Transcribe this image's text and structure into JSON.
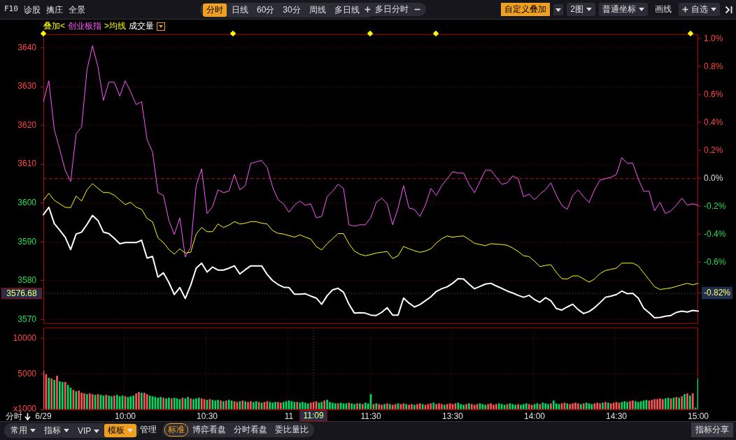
{
  "chart_data": [
    {
      "type": "line",
      "legend_title": "叠加<",
      "annotations": [
        "F10",
        "诊股",
        "擒庄",
        "全景",
        "分时",
        "日线",
        "60分",
        "30分",
        "周线",
        "多日线",
        "多日分时",
        "自定义叠加",
        "2图",
        "普通坐标",
        "画线",
        "自选"
      ],
      "categories": [
        null,
        null,
        null,
        null,
        null,
        null,
        null,
        null,
        null,
        null,
        null,
        null,
        null,
        null,
        null,
        null,
        null,
        null,
        null,
        null,
        null,
        null,
        null,
        null,
        null,
        null,
        null,
        null,
        null,
        null,
        null,
        null,
        null,
        null,
        null,
        null,
        null,
        null,
        null,
        null,
        null,
        null,
        null,
        null,
        null,
        null,
        null,
        null,
        null,
        null,
        null,
        null,
        null,
        null,
        null,
        null,
        null,
        null,
        null,
        null,
        null,
        null,
        null,
        null,
        null,
        null,
        null,
        null,
        null,
        null,
        null,
        null,
        null,
        null,
        null,
        null,
        null,
        null,
        null,
        null,
        null,
        null,
        null,
        null,
        null,
        null,
        null,
        null,
        null,
        null,
        null,
        null,
        null,
        null,
        null,
        null,
        null,
        null,
        null,
        null,
        null,
        null,
        null,
        null,
        null,
        null,
        null,
        null,
        null,
        null,
        null,
        null,
        null,
        null,
        null,
        null,
        null,
        null,
        null,
        null,
        null
      ],
      "ylim": [
        3569,
        3643.5
      ],
      "yticks": [
        3570,
        3580,
        3590,
        3600,
        3610,
        3620,
        3630,
        3640
      ],
      "y2lim": [
        -1.034,
        1.032
      ],
      "y2ticks": [
        {
          "value": -0.82,
          "label": "-0.82%"
        },
        {
          "value": -0.6,
          "label": "-0.6%"
        },
        {
          "value": -0.4,
          "label": "-0.4%"
        },
        {
          "value": -0.2,
          "label": "-0.2%"
        },
        {
          "value": 0,
          "label": "0.0%"
        },
        {
          "value": 0.2,
          "label": "0.2%"
        },
        {
          "value": 0.4,
          "label": "0.4%"
        },
        {
          "value": 0.6,
          "label": "0.6%"
        },
        {
          "value": 0.8,
          "label": "0.8%"
        },
        {
          "value": 1,
          "label": "1.0%"
        }
      ],
      "grid": "y",
      "marker": "none",
      "ref_lines": [
        {
          "axis": "y2",
          "value": 0,
          "line_style": "dashed",
          "color": "#b01818"
        },
        {
          "axis": "y",
          "value": 3576.68,
          "label": "3576.68",
          "line_style": "dotted",
          "color": "#606060"
        }
      ],
      "series": [
        {
          "color": "#ffffff",
          "values": [
            3597.0,
            3598.9,
            3594.7,
            3593.0,
            3591.2,
            3588.0,
            3592.0,
            3592.5,
            3594.5,
            3596.8,
            3595.5,
            3592.5,
            3592.1,
            3590.9,
            3589.5,
            3589.8,
            3589.8,
            3589.8,
            3590.4,
            3585.8,
            3586.2,
            3580.9,
            3582.0,
            3579.5,
            3576.4,
            3578.2,
            3575.4,
            3578.8,
            3583.2,
            3584.5,
            3582.2,
            3583.5,
            3582.7,
            3582.7,
            3583.2,
            3583.8,
            3581.7,
            3582.8,
            3583.8,
            3583.8,
            3583.8,
            3581.6,
            3580.0,
            3579.0,
            3578.3,
            3578.2,
            3576.5,
            3576.5,
            3576.6,
            3576.0,
            3575.5,
            3573.9,
            3576.1,
            3577.6,
            3578.0,
            3577.0,
            3573.9,
            3571.6,
            3571.7,
            3571.6,
            3571.1,
            3571.0,
            3571.8,
            3573.0,
            3571.1,
            3571.1,
            3575.5,
            3574.2,
            3573.2,
            3573.8,
            3574.8,
            3575.8,
            3577.2,
            3577.9,
            3578.4,
            3579.3,
            3580.5,
            3580.4,
            3579.1,
            3577.9,
            3578.5,
            3579.1,
            3579.3,
            3578.6,
            3578.0,
            3577.3,
            3576.8,
            3576.2,
            3575.7,
            3576.2,
            3575.1,
            3574.4,
            3575.6,
            3574.8,
            3572.8,
            3572.4,
            3573.2,
            3573.9,
            3572.5,
            3571.5,
            3572.0,
            3573.0,
            3574.3,
            3575.7,
            3576.0,
            3576.4,
            3577.3,
            3576.6,
            3576.7,
            3575.5,
            3572.9,
            3571.7,
            3570.4,
            3570.5,
            3570.8,
            3571.0,
            3571.8,
            3572.1,
            3571.9,
            3572.3,
            3572.1
          ]
        },
        {
          "name": "创业板指",
          "color": "#ff55ff",
          "axis": "y2",
          "values": [
            0.55,
            0.7,
            0.35,
            0.21,
            0.06,
            -0.02,
            0.32,
            0.37,
            0.78,
            0.95,
            0.8,
            0.56,
            0.69,
            0.69,
            0.59,
            0.7,
            0.62,
            0.53,
            0.55,
            0.28,
            0.19,
            -0.1,
            -0.12,
            -0.3,
            -0.4,
            -0.28,
            -0.56,
            -0.49,
            -0.05,
            0.07,
            -0.25,
            -0.2,
            -0.08,
            -0.1,
            -0.09,
            0.03,
            -0.08,
            -0.05,
            0.11,
            0.12,
            0.13,
            0.08,
            -0.06,
            -0.15,
            -0.18,
            -0.24,
            -0.19,
            -0.16,
            -0.19,
            -0.18,
            -0.28,
            -0.27,
            -0.13,
            -0.09,
            -0.04,
            -0.07,
            -0.33,
            -0.34,
            -0.33,
            -0.33,
            -0.28,
            -0.17,
            -0.14,
            -0.18,
            -0.33,
            -0.21,
            -0.05,
            -0.21,
            -0.22,
            -0.27,
            -0.19,
            -0.07,
            -0.12,
            -0.05,
            0.0,
            0.05,
            0.04,
            0.04,
            -0.04,
            -0.1,
            -0.02,
            0.06,
            0.06,
            0.01,
            -0.04,
            -0.03,
            0.02,
            0.0,
            -0.13,
            -0.11,
            -0.15,
            -0.11,
            -0.08,
            -0.03,
            -0.12,
            -0.19,
            -0.22,
            -0.12,
            -0.08,
            -0.13,
            -0.17,
            -0.08,
            -0.01,
            0.0,
            0.01,
            0.03,
            0.15,
            0.11,
            0.11,
            0.0,
            -0.09,
            -0.09,
            -0.23,
            -0.17,
            -0.25,
            -0.23,
            -0.19,
            -0.14,
            -0.19,
            -0.18,
            -0.19
          ]
        },
        {
          "name": ">均线",
          "color": "#ffff00",
          "values": [
            3600.7,
            3602.5,
            3600.7,
            3599.8,
            3598.9,
            3598.8,
            3601.8,
            3600.5,
            3603.4,
            3605.0,
            3603.8,
            3602.7,
            3602.7,
            3602.0,
            3600.8,
            3599.6,
            3600.2,
            3598.9,
            3598.4,
            3596.0,
            3595.2,
            3591.0,
            3589.8,
            3588.0,
            3586.8,
            3588.2,
            3587.1,
            3587.3,
            3592.0,
            3593.7,
            3592.6,
            3592.6,
            3594.6,
            3593.7,
            3594.3,
            3595.2,
            3594.6,
            3594.8,
            3595.2,
            3595.2,
            3594.8,
            3594.6,
            3592.9,
            3592.2,
            3592.0,
            3591.6,
            3591.2,
            3591.8,
            3591.2,
            3590.7,
            3588.8,
            3587.9,
            3589.5,
            3590.8,
            3592.1,
            3592.1,
            3589.5,
            3587.6,
            3586.8,
            3586.4,
            3586.7,
            3587.1,
            3587.3,
            3587.5,
            3585.7,
            3586.4,
            3588.8,
            3588.2,
            3587.7,
            3587.3,
            3587.6,
            3588.2,
            3589.7,
            3590.8,
            3591.5,
            3591.2,
            3591.4,
            3591.5,
            3590.6,
            3589.6,
            3589.3,
            3589.0,
            3589.5,
            3589.4,
            3589.3,
            3589.1,
            3588.4,
            3587.5,
            3586.4,
            3586.2,
            3585.0,
            3583.6,
            3583.9,
            3584.1,
            3582.1,
            3580.5,
            3580.4,
            3581.2,
            3581.2,
            3580.4,
            3579.6,
            3580.4,
            3581.8,
            3582.6,
            3582.9,
            3583.2,
            3584.5,
            3584.5,
            3584.5,
            3583.8,
            3582.0,
            3580.2,
            3578.4,
            3577.7,
            3577.9,
            3578.1,
            3578.5,
            3578.9,
            3579.3,
            3578.9,
            3579.3
          ]
        }
      ]
    },
    {
      "type": "bar",
      "annotations": [
        "成交量",
        "分时",
        "常用",
        "指标",
        "VIP",
        "模板",
        "管理",
        "标准",
        "博弈看盘",
        "分时看盘",
        "委比量比",
        "指标分享"
      ],
      "categories": [
        "6/29",
        null,
        null,
        null,
        null,
        null,
        null,
        null,
        null,
        null,
        null,
        null,
        null,
        null,
        null,
        null,
        null,
        null,
        null,
        null,
        null,
        null,
        null,
        null,
        null,
        null,
        null,
        null,
        null,
        null,
        "10:00",
        null,
        null,
        null,
        null,
        null,
        null,
        null,
        null,
        null,
        null,
        null,
        null,
        null,
        null,
        null,
        null,
        null,
        null,
        null,
        null,
        null,
        null,
        null,
        null,
        null,
        null,
        null,
        null,
        null,
        "10:30",
        null,
        null,
        null,
        null,
        null,
        null,
        null,
        null,
        null,
        null,
        null,
        null,
        null,
        null,
        null,
        null,
        null,
        null,
        null,
        null,
        null,
        null,
        null,
        null,
        null,
        null,
        null,
        null,
        null,
        "11",
        null,
        null,
        null,
        null,
        null,
        null,
        null,
        null,
        "11:09",
        null,
        null,
        null,
        null,
        null,
        null,
        null,
        null,
        null,
        null,
        null,
        null,
        null,
        null,
        null,
        null,
        null,
        null,
        null,
        null,
        "11:30",
        null,
        null,
        null,
        null,
        null,
        null,
        null,
        null,
        null,
        null,
        null,
        null,
        null,
        null,
        null,
        null,
        null,
        null,
        null,
        null,
        null,
        null,
        null,
        null,
        null,
        null,
        null,
        null,
        null,
        "13:30",
        null,
        null,
        null,
        null,
        null,
        null,
        null,
        null,
        null,
        null,
        null,
        null,
        null,
        null,
        null,
        null,
        null,
        null,
        null,
        null,
        null,
        null,
        null,
        null,
        null,
        null,
        null,
        null,
        null,
        "14:00",
        null,
        null,
        null,
        null,
        null,
        null,
        null,
        null,
        null,
        null,
        null,
        null,
        null,
        null,
        null,
        null,
        null,
        null,
        null,
        null,
        null,
        null,
        null,
        null,
        null,
        null,
        null,
        null,
        null,
        "14:30",
        null,
        null,
        null,
        null,
        null,
        null,
        null,
        null,
        null,
        null,
        null,
        null,
        null,
        null,
        null,
        null,
        null,
        null,
        null,
        null,
        null,
        null,
        null,
        null,
        null,
        null,
        null,
        null,
        null,
        "15:00"
      ],
      "ylim": [
        0,
        11500
      ],
      "yticks": [
        {
          "value": 0,
          "label": "x1000"
        },
        5000,
        10000
      ],
      "grid": true,
      "ref_lines": [
        {
          "axis": "x",
          "value": "11:09",
          "line_style": "dotted",
          "color": "#606060"
        }
      ],
      "values": [
        5400,
        4900,
        4400,
        4300,
        4100,
        4700,
        3900,
        3800,
        3800,
        3400,
        3000,
        2700,
        2500,
        2600,
        2300,
        2200,
        2100,
        2200,
        2100,
        2000,
        2100,
        2000,
        1900,
        2000,
        1900,
        1800,
        1900,
        2000,
        1800,
        1900,
        1800,
        1700,
        1800,
        1900,
        2200,
        2400,
        2300,
        2300,
        2100,
        1900,
        1800,
        1700,
        1600,
        1700,
        1600,
        1500,
        1600,
        1500,
        1600,
        1500,
        1400,
        1600,
        1500,
        1700,
        1500,
        1400,
        1500,
        1600,
        1500,
        1400,
        1300,
        1400,
        1300,
        1200,
        1300,
        1200,
        1100,
        1200,
        1300,
        1200,
        1100,
        1000,
        1100,
        1200,
        1100,
        1000,
        1100,
        1000,
        1100,
        1000,
        900,
        1000,
        1100,
        1000,
        900,
        1000,
        1000,
        900,
        1000,
        1100,
        1200,
        1100,
        1000,
        1000,
        900,
        1000,
        900,
        800,
        900,
        1000,
        1100,
        900,
        1000,
        1200,
        1300,
        1000,
        900,
        800,
        800,
        900,
        800,
        800,
        900,
        800,
        700,
        800,
        800,
        700,
        900,
        800,
        2100,
        700,
        800,
        700,
        600,
        700,
        800,
        700,
        600,
        700,
        800,
        700,
        800,
        700,
        600,
        700,
        600,
        700,
        800,
        700,
        600,
        700,
        800,
        900,
        700,
        800,
        700,
        600,
        700,
        800,
        700,
        800,
        900,
        700,
        600,
        700,
        800,
        700,
        600,
        700,
        800,
        700,
        600,
        700,
        800,
        600,
        700,
        800,
        700,
        600,
        700,
        800,
        700,
        600,
        700,
        600,
        700,
        800,
        700,
        600,
        700,
        800,
        700,
        900,
        800,
        700,
        800,
        1200,
        800,
        700,
        800,
        900,
        800,
        700,
        800,
        900,
        800,
        700,
        800,
        900,
        800,
        700,
        800,
        900,
        800,
        900,
        1000,
        900,
        800,
        900,
        1000,
        900,
        1000,
        1100,
        1000,
        1100,
        1200,
        1100,
        1000,
        1100,
        1200,
        1300,
        1200,
        1300,
        1400,
        1400,
        1500,
        1400,
        1500,
        1600,
        1500,
        1600,
        1700,
        1600,
        1800,
        2100,
        2200,
        1900,
        2200,
        200,
        4300
      ],
      "colors": [
        "#ff5555",
        "#ff5555",
        "#00dd66",
        "#ff5555",
        "#00dd66",
        "#ff5555",
        "#00dd66",
        "#00dd66",
        "#ff5555",
        "#00dd66",
        "#00dd66",
        "#ff5555",
        "#00dd66",
        "#ff5555",
        "#ff5555",
        "#ff5555",
        "#00dd66",
        "#ff5555",
        "#ff5555",
        "#00dd66",
        "#ff5555",
        "#00dd66",
        "#00dd66",
        "#ff5555",
        "#00dd66",
        "#00dd66",
        "#ff5555",
        "#00dd66",
        "#00dd66",
        "#00dd66",
        "#ff5555",
        "#00dd66",
        "#00dd66",
        "#00dd66",
        "#ff5555",
        "#ff5555",
        "#00dd66",
        "#ff5555",
        "#ff5555",
        "#00dd66",
        "#00dd66",
        "#00dd66",
        "#00dd66",
        "#00dd66",
        "#ff5555",
        "#00dd66",
        "#00dd66",
        "#ff5555",
        "#00dd66",
        "#00dd66",
        "#00dd66",
        "#ff5555",
        "#00dd66",
        "#00dd66",
        "#ff5555",
        "#00dd66",
        "#00dd66",
        "#00dd66",
        "#ff5555",
        "#ff5555",
        "#00dd66",
        "#ff5555",
        "#00dd66",
        "#00dd66",
        "#00dd66",
        "#ff5555",
        "#00dd66",
        "#ff5555",
        "#00dd66",
        "#00dd66",
        "#ff5555",
        "#ff5555",
        "#00dd66",
        "#ff5555",
        "#00dd66",
        "#ff5555",
        "#ff5555",
        "#00dd66",
        "#00dd66",
        "#ff5555",
        "#00dd66",
        "#ff5555",
        "#ff5555",
        "#00dd66",
        "#00dd66",
        "#00dd66",
        "#ff5555",
        "#ff5555",
        "#00dd66",
        "#00dd66",
        "#00dd66",
        "#00dd66",
        "#00dd66",
        "#ff5555",
        "#00dd66",
        "#00dd66",
        "#00dd66",
        "#00dd66",
        "#ff5555",
        "#ff5555",
        "#ff5555",
        "#00dd66",
        "#00dd66",
        "#ff5555",
        "#00dd66",
        "#00dd66",
        "#00dd66",
        "#00dd66",
        "#ff5555",
        "#00dd66",
        "#00dd66",
        "#00dd66",
        "#ff5555",
        "#00dd66",
        "#00dd66",
        "#ff5555",
        "#00dd66",
        "#ff5555",
        "#00dd66",
        "#00dd66",
        "#00dd66",
        "#ff5555",
        "#00dd66",
        "#ff5555",
        "#ff5555",
        "#00dd66",
        "#ff5555",
        "#00dd66",
        "#ff5555",
        "#ff5555",
        "#00dd66",
        "#ff5555",
        "#ff5555",
        "#00dd66",
        "#ff5555",
        "#ff5555",
        "#00dd66",
        "#ff5555",
        "#ff5555",
        "#00dd66",
        "#ff5555",
        "#ff5555",
        "#ff5555",
        "#00dd66",
        "#ff5555",
        "#ff5555",
        "#ff5555",
        "#00dd66",
        "#ff5555",
        "#ff5555",
        "#ff5555",
        "#ff5555",
        "#00dd66",
        "#00dd66",
        "#00dd66",
        "#ff5555",
        "#00dd66",
        "#ff5555",
        "#ff5555",
        "#ff5555",
        "#00dd66",
        "#00dd66",
        "#00dd66",
        "#ff5555",
        "#ff5555",
        "#ff5555",
        "#ff5555",
        "#00dd66",
        "#00dd66",
        "#00dd66",
        "#ff5555",
        "#00dd66",
        "#00dd66",
        "#00dd66",
        "#ff5555",
        "#00dd66",
        "#00dd66",
        "#00dd66",
        "#ff5555",
        "#ff5555",
        "#00dd66",
        "#00dd66",
        "#ff5555",
        "#00dd66",
        "#00dd66",
        "#00dd66",
        "#ff5555",
        "#00dd66",
        "#00dd66",
        "#00dd66",
        "#ff5555",
        "#ff5555",
        "#00dd66",
        "#ff5555",
        "#ff5555",
        "#ff5555",
        "#ff5555",
        "#00dd66",
        "#ff5555",
        "#00dd66",
        "#00dd66",
        "#00dd66",
        "#ff5555",
        "#ff5555",
        "#ff5555",
        "#00dd66",
        "#ff5555",
        "#00dd66",
        "#ff5555",
        "#ff5555",
        "#ff5555",
        "#ff5555",
        "#00dd66",
        "#00dd66",
        "#00dd66",
        "#ff5555",
        "#ff5555",
        "#00dd66",
        "#00dd66",
        "#00dd66",
        "#00dd66",
        "#00dd66",
        "#ff5555",
        "#ff5555",
        "#ff5555",
        "#ff5555",
        "#ff5555",
        "#ff5555",
        "#00dd66",
        "#00dd66",
        "#ff5555",
        "#00dd66",
        "#ff5555",
        "#00dd66",
        "#ff5555",
        "#00dd66",
        "#ff5555",
        "#00dd66",
        "#ff5555",
        "#00dd66",
        "#00dd66"
      ]
    }
  ]
}
